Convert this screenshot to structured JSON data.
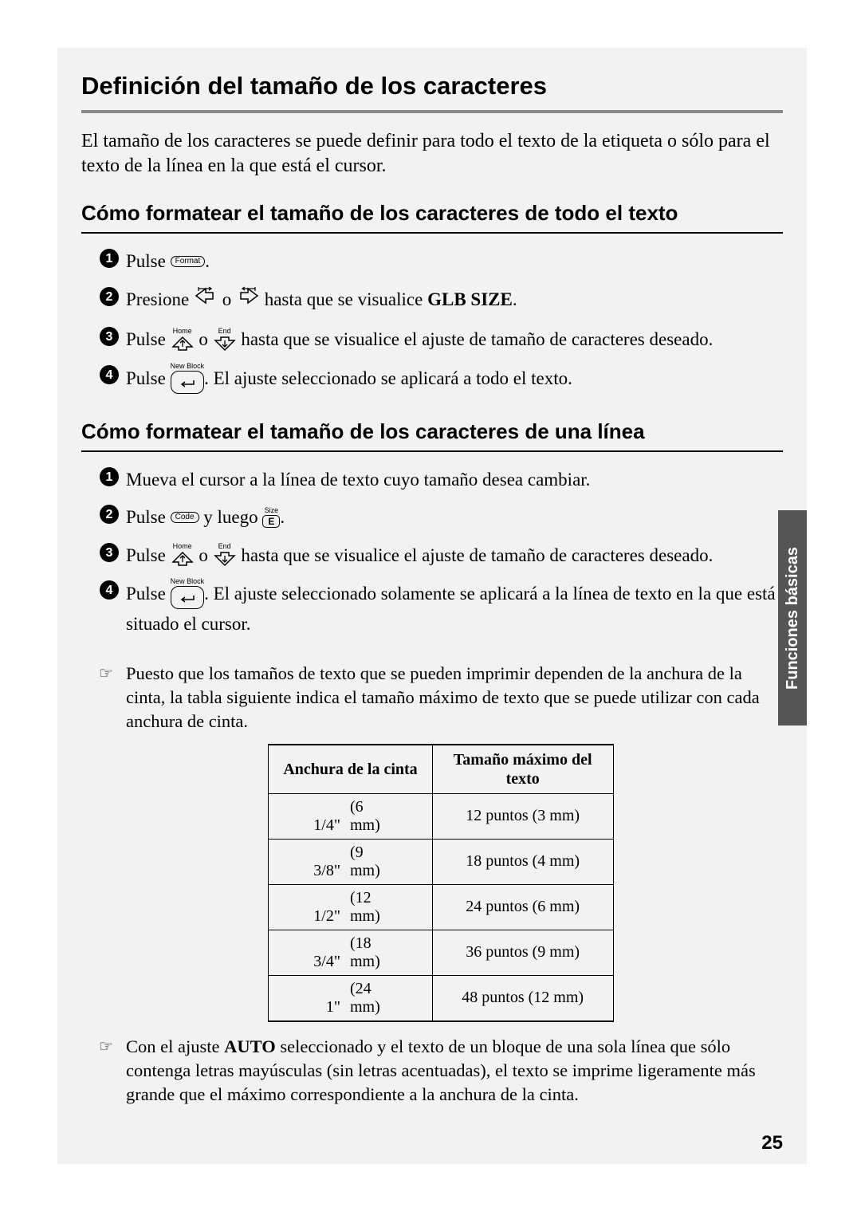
{
  "page": {
    "title": "Definición del tamaño de los caracteres",
    "intro": "El tamaño de los caracteres se puede definir para todo el texto de la etiqueta o sólo para el texto de la línea en la que está el cursor.",
    "sideTab": "Funciones básicas",
    "pageNumber": "25"
  },
  "sectionA": {
    "heading": "Cómo formatear el tamaño de los caracteres de todo el texto",
    "steps": {
      "s1_a": "Pulse ",
      "s1_key": "Format",
      "s1_b": ".",
      "s2_a": "Presione ",
      "s2_b": " o ",
      "s2_c": " hasta que se visualice ",
      "s2_bold": "GLB SIZE",
      "s2_d": ".",
      "s3_a": "Pulse ",
      "s3_b": " o ",
      "s3_c": " hasta que se visualice el ajuste de tamaño de caracteres deseado.",
      "s3_upLabel": "Home",
      "s3_dnLabel": "End",
      "s4_a": "Pulse ",
      "s4_keyTop": "New Block",
      "s4_b": ". El ajuste seleccionado se aplicará a todo el texto."
    }
  },
  "sectionB": {
    "heading": "Cómo formatear el tamaño de los caracteres de una línea",
    "steps": {
      "s1": "Mueva el cursor a la línea de texto cuyo tamaño desea cambiar.",
      "s2_a": "Pulse ",
      "s2_key1": "Code",
      "s2_b": " y luego ",
      "s2_key2top": "Size",
      "s2_key2": "E",
      "s2_c": ".",
      "s3_a": "Pulse ",
      "s3_b": " o ",
      "s3_c": " hasta que se visualice el ajuste de tamaño de caracteres deseado.",
      "s3_upLabel": "Home",
      "s3_dnLabel": "End",
      "s4_a": "Pulse ",
      "s4_keyTop": "New Block",
      "s4_b": ". El ajuste seleccionado solamente se aplicará a la línea de texto en la que está situado el cursor."
    }
  },
  "note1": {
    "icon": "☞",
    "text": "Puesto que los tamaños de texto que se pueden imprimir dependen de la anchura de la cinta, la tabla siguiente indica el tamaño máximo de texto que se puede utilizar con cada anchura de cinta."
  },
  "table": {
    "header1": "Anchura de la cinta",
    "header2": "Tamaño máximo del texto",
    "rows": [
      {
        "c1a": "1/4\"",
        "c1b": "(6 mm)",
        "c2": "12 puntos (3 mm)"
      },
      {
        "c1a": "3/8\"",
        "c1b": "(9 mm)",
        "c2": "18 puntos (4 mm)"
      },
      {
        "c1a": "1/2\"",
        "c1b": "(12 mm)",
        "c2": "24 puntos (6 mm)"
      },
      {
        "c1a": "3/4\"",
        "c1b": "(18 mm)",
        "c2": "36 puntos (9 mm)"
      },
      {
        "c1a": "1\"",
        "c1b": "(24 mm)",
        "c2": "48 puntos (12 mm)"
      }
    ]
  },
  "note2": {
    "icon": "☞",
    "text_a": "Con el ajuste ",
    "bold": "AUTO",
    "text_b": " seleccionado y el texto de un bloque de una sola línea que sólo contenga letras mayúsculas (sin letras acentuadas), el texto se imprime ligeramente más grande que el máximo correspondiente a la anchura de la cinta."
  },
  "colors": {
    "pageBg": "#f2f2f2",
    "ruleThick": "#888888",
    "ruleThin": "#000000",
    "tabBg": "#555555",
    "tabText": "#ffffff"
  }
}
